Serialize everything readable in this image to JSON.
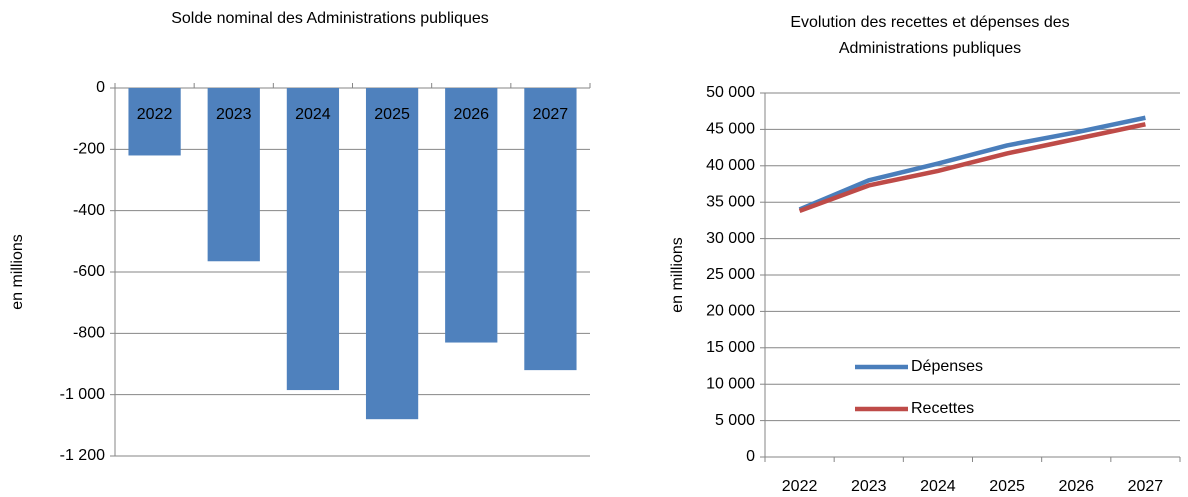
{
  "chart_data": [
    {
      "type": "bar",
      "title": "Solde nominal des Administrations publiques",
      "y_label": "en millions",
      "categories": [
        "2022",
        "2023",
        "2024",
        "2025",
        "2026",
        "2027"
      ],
      "values": [
        -220,
        -565,
        -985,
        -1080,
        -830,
        -920
      ],
      "color": "#4f81bd",
      "ylim": [
        -1200,
        0
      ],
      "yticks": [
        0,
        -200,
        -400,
        -600,
        -800,
        {
          "value": -1000,
          "label": "-1 000"
        },
        {
          "value": -1200,
          "label": "-1 200"
        }
      ],
      "grid": true
    },
    {
      "type": "line",
      "title": "Evolution des recettes et dépenses des Administrations publiques",
      "y_label": "en millions",
      "categories": [
        "2022",
        "2023",
        "2024",
        "2025",
        "2026",
        "2027"
      ],
      "series": [
        {
          "name": "Dépenses",
          "color": "#4a7ebb",
          "values": [
            34000,
            38000,
            40300,
            42800,
            44600,
            46600
          ]
        },
        {
          "name": "Recettes",
          "color": "#be4b48",
          "values": [
            33800,
            37300,
            39300,
            41700,
            43700,
            45700
          ]
        }
      ],
      "ylim": [
        0,
        50000
      ],
      "yticks": [
        0,
        {
          "value": 5000,
          "label": "5 000"
        },
        {
          "value": 10000,
          "label": "10 000"
        },
        {
          "value": 15000,
          "label": "15 000"
        },
        {
          "value": 20000,
          "label": "20 000"
        },
        {
          "value": 25000,
          "label": "25 000"
        },
        {
          "value": 30000,
          "label": "30 000"
        },
        {
          "value": 35000,
          "label": "35 000"
        },
        {
          "value": 40000,
          "label": "40 000"
        },
        {
          "value": 45000,
          "label": "45 000"
        },
        {
          "value": 50000,
          "label": "50 000"
        }
      ],
      "grid": true,
      "legend": "bottom"
    }
  ]
}
